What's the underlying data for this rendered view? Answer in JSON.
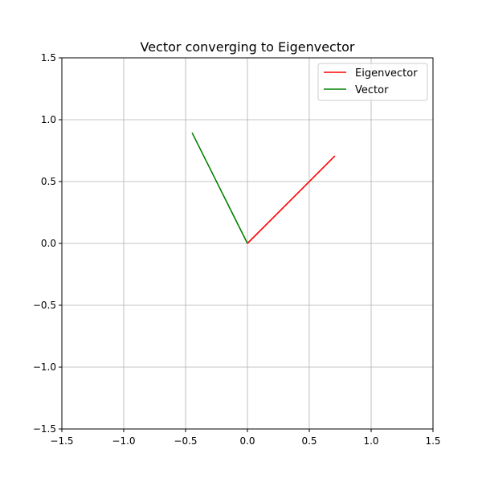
{
  "chart_data": {
    "type": "line",
    "title": "Vector converging to Eigenvector",
    "xlabel": "",
    "ylabel": "",
    "xlim": [
      -1.5,
      1.5
    ],
    "ylim": [
      -1.5,
      1.5
    ],
    "xticks": [
      -1.5,
      -1.0,
      -0.5,
      0.0,
      0.5,
      1.0,
      1.5
    ],
    "yticks": [
      -1.5,
      -1.0,
      -0.5,
      0.0,
      0.5,
      1.0,
      1.5
    ],
    "xtick_labels": [
      "−1.5",
      "−1.0",
      "−0.5",
      "0.0",
      "0.5",
      "1.0",
      "1.5"
    ],
    "ytick_labels": [
      "−1.5",
      "−1.0",
      "−0.5",
      "0.0",
      "0.5",
      "1.0",
      "1.5"
    ],
    "grid": true,
    "legend_position": "top-right",
    "series": [
      {
        "name": "Eigenvector",
        "color": "#ff0000",
        "x": [
          0,
          0.707
        ],
        "y": [
          0,
          0.707
        ]
      },
      {
        "name": "Vector",
        "color": "#008000",
        "x": [
          0,
          -0.447
        ],
        "y": [
          0,
          0.894
        ]
      }
    ]
  }
}
